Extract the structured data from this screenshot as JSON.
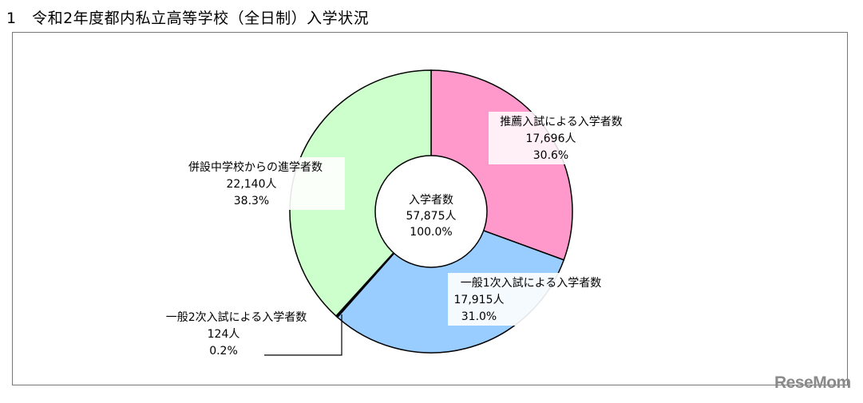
{
  "title": "1　令和2年度都内私立高等学校（全日制）入学状況",
  "chart_data": {
    "type": "pie",
    "donut": true,
    "center_label": {
      "name": "入学者数",
      "value": "57,875人",
      "percent": "100.0%"
    },
    "slices": [
      {
        "name": "推薦入試による入学者数",
        "value": 17696,
        "value_label": "17,696人",
        "percent": 30.6,
        "percent_label": "30.6%",
        "color": "#ff99cc"
      },
      {
        "name": "一般1次入試による入学者数",
        "value": 17915,
        "value_label": "17,915人",
        "percent": 31.0,
        "percent_label": "31.0%",
        "color": "#99ccff"
      },
      {
        "name": "一般2次入試による入学者数",
        "value": 124,
        "value_label": "124人",
        "percent": 0.2,
        "percent_label": "0.2%",
        "color": "#000000"
      },
      {
        "name": "併設中学校からの進学者数",
        "value": 22140,
        "value_label": "22,140人",
        "percent": 38.3,
        "percent_label": "38.3%",
        "color": "#ccffcc"
      }
    ],
    "start": "top",
    "direction": "clockwise"
  },
  "watermark": "ReseMom"
}
